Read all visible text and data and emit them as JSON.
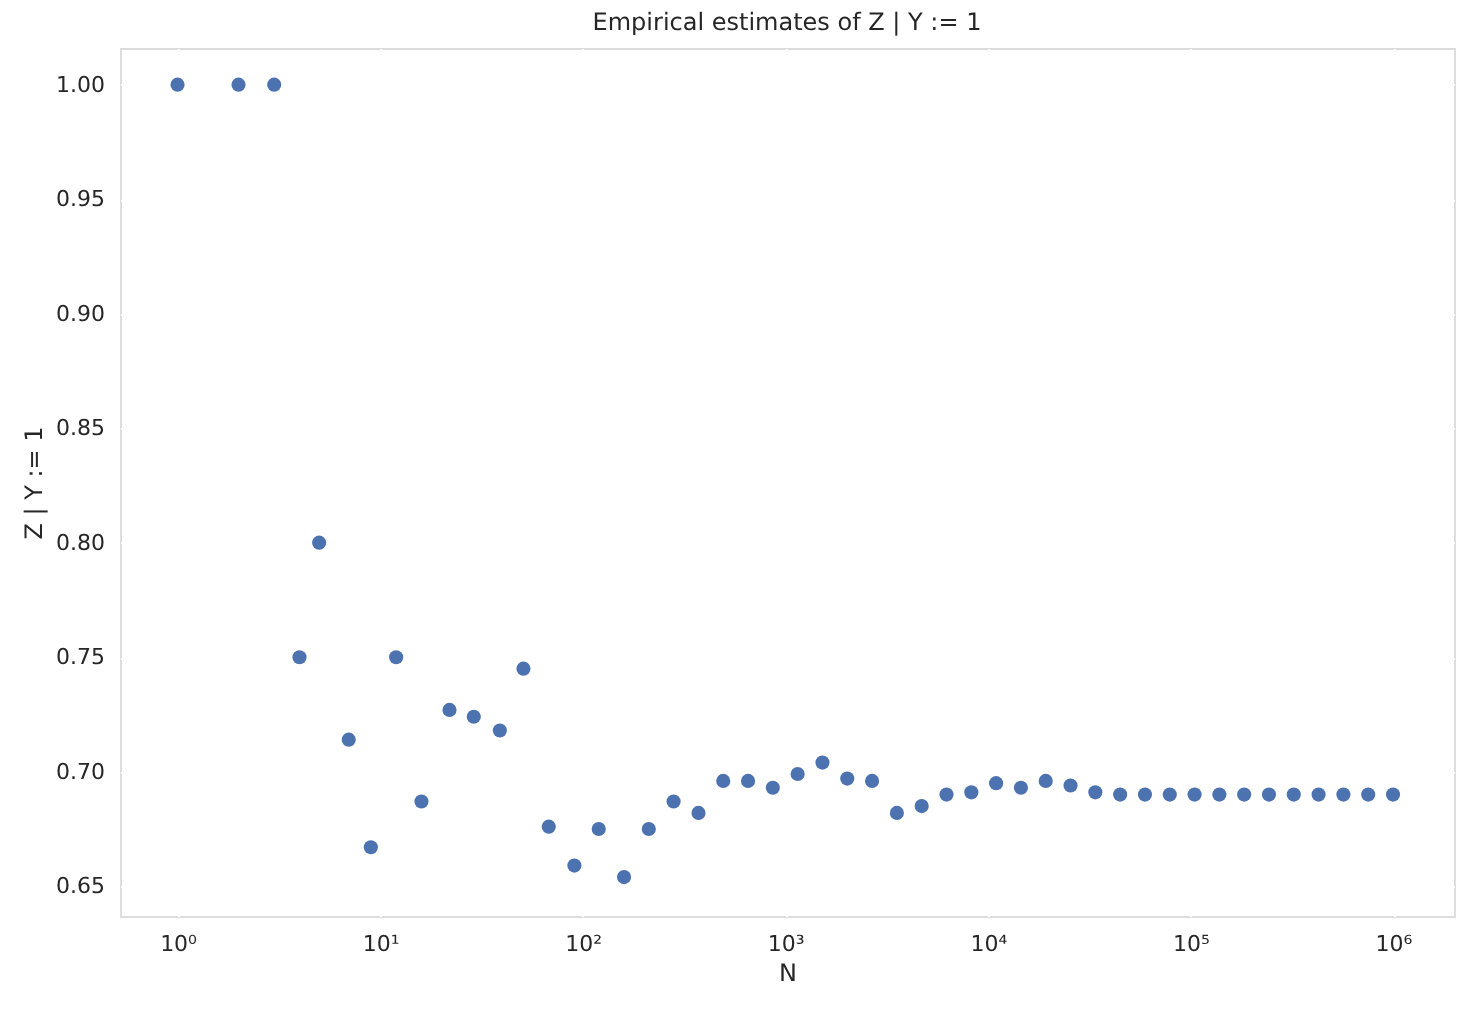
{
  "chart_data": {
    "type": "scatter",
    "title": "Empirical estimates of Z | Y := 1",
    "xlabel": "N",
    "ylabel": "Z | Y := 1",
    "x": [
      1,
      2,
      3,
      4,
      5,
      7,
      9,
      12,
      16,
      22,
      29,
      39,
      51,
      68,
      91,
      120,
      160,
      212,
      281,
      373,
      494,
      655,
      868,
      1151,
      1526,
      2023,
      2682,
      3556,
      4714,
      6250,
      8286,
      10985,
      14563,
      19306,
      25595,
      33932,
      44984,
      59636,
      79060,
      104811,
      138949,
      184206,
      244205,
      323745,
      429193,
      568986,
      754312,
      1000000
    ],
    "series": [
      {
        "color": "#4c72b0",
        "values": [
          1.0,
          1.0,
          1.0,
          0.75,
          0.8,
          0.714,
          0.667,
          0.75,
          0.687,
          0.727,
          0.724,
          0.718,
          0.745,
          0.676,
          0.659,
          0.675,
          0.654,
          0.675,
          0.687,
          0.682,
          0.696,
          0.696,
          0.693,
          0.699,
          0.704,
          0.697,
          0.696,
          0.682,
          0.685,
          0.69,
          0.691,
          0.695,
          0.693,
          0.696,
          0.694,
          0.691,
          0.69,
          0.69,
          0.69,
          0.69,
          0.69,
          0.69,
          0.69,
          0.69,
          0.69,
          0.69,
          0.69,
          0.69
        ]
      }
    ],
    "log": "x",
    "xlim": [
      0.52,
      2000000
    ],
    "ylim": [
      0.637,
      1.016
    ],
    "xticks": [
      {
        "value": 1,
        "label": "10⁰"
      },
      {
        "value": 10,
        "label": "10¹"
      },
      {
        "value": 100,
        "label": "10²"
      },
      {
        "value": 1000,
        "label": "10³"
      },
      {
        "value": 10000,
        "label": "10⁴"
      },
      {
        "value": 100000,
        "label": "10⁵"
      },
      {
        "value": 1000000,
        "label": "10⁶"
      }
    ],
    "yticks": [
      0.65,
      {
        "value": 0.7,
        "label": "0.70"
      },
      0.75,
      {
        "value": 0.8,
        "label": "0.80"
      },
      0.85,
      {
        "value": 0.9,
        "label": "0.90"
      },
      0.95,
      {
        "value": 1.0,
        "label": "1.00"
      }
    ],
    "grid": true,
    "marker": "circle"
  }
}
